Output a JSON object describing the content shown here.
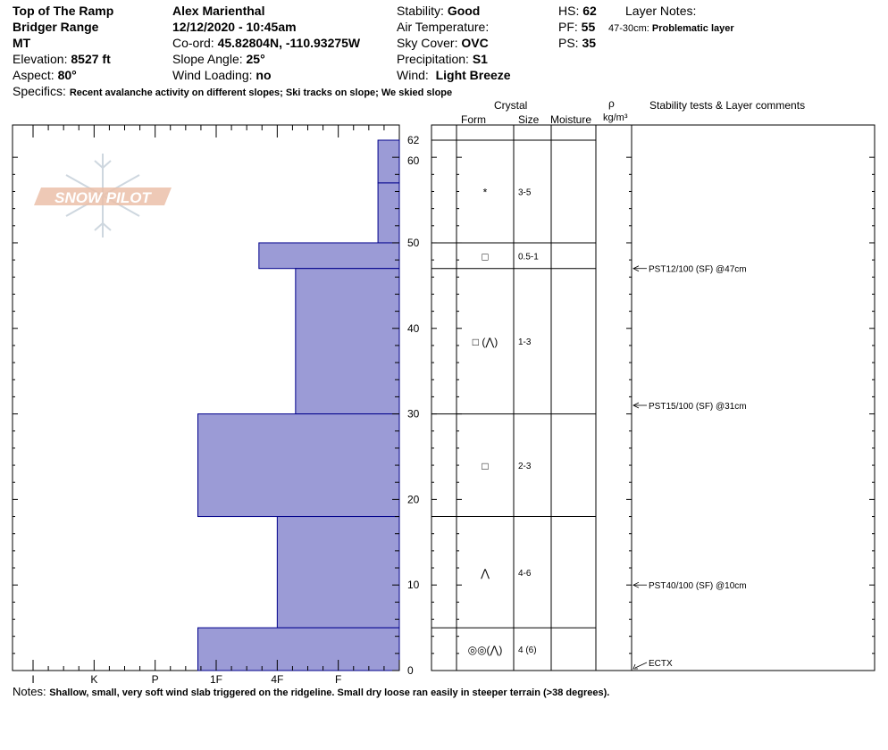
{
  "header": {
    "location": "Top of The Ramp",
    "range": "Bridger Range",
    "state": "MT",
    "elevation_label": "Elevation:",
    "elevation": "8527 ft",
    "aspect_label": "Aspect:",
    "aspect": "80°",
    "observer": "Alex Marienthal",
    "datetime": "12/12/2020 - 10:45am",
    "coord_label": "Co-ord:",
    "coord": "45.82804N, -110.93275W",
    "slope_label": "Slope Angle:",
    "slope": "25°",
    "wind_loading_label": "Wind Loading:",
    "wind_loading": "no",
    "stability_label": "Stability:",
    "stability": "Good",
    "air_temp_label": "Air Temperature:",
    "sky_label": "Sky Cover:",
    "sky": "OVC",
    "precip_label": "Precipitation:",
    "precip": "S1",
    "wind_label": "Wind:",
    "wind": "Light Breeze",
    "hs_label": "HS:",
    "hs": "62",
    "pf_label": "PF:",
    "pf": "55",
    "ps_label": "PS:",
    "ps": "35",
    "layer_notes_label": "Layer Notes:",
    "layer_note_range": "47-30cm:",
    "layer_note_text": "Problematic layer",
    "specifics_label": "Specifics:",
    "specifics": "Recent avalanche activity on different slopes; Ski tracks on slope; We skied slope"
  },
  "columns": {
    "crystal": "Crystal",
    "form": "Form",
    "size": "Size",
    "moisture": "Moisture",
    "rho": "ρ",
    "density_unit": "kg/m³",
    "stability_tests": "Stability tests & Layer comments"
  },
  "logo_text": "SNOW PILOT",
  "notes_label": "Notes:",
  "notes": "Shallow, small, very soft wind slab triggered on the ridgeline. Small dry loose ran easily in steeper terrain (>38 degrees).",
  "colors": {
    "hardness_fill": "#9b9bd6",
    "hardness_stroke": "#00008b",
    "logo": "#e9b9a0"
  },
  "chart_data": {
    "type": "bar",
    "orientation": "horizontal-profile",
    "y_axis": {
      "range": [
        0,
        62
      ],
      "ticks": [
        0,
        10,
        20,
        30,
        40,
        50,
        60,
        62
      ]
    },
    "x_axis": {
      "categories": [
        "I",
        "K",
        "P",
        "1F",
        "4F",
        "F"
      ]
    },
    "layers": [
      {
        "bottom": 57,
        "top": 62,
        "hardness": "F-",
        "form": "*",
        "size": "3-5"
      },
      {
        "bottom": 50,
        "top": 57,
        "hardness": "F-",
        "form": "*",
        "size": "3-5"
      },
      {
        "bottom": 47,
        "top": 50,
        "hardness": "4F-",
        "form": "□",
        "size": "0.5-1"
      },
      {
        "bottom": 30,
        "top": 47,
        "hardness": "F+",
        "form": "□ (⋀)",
        "size": "1-3"
      },
      {
        "bottom": 18,
        "top": 30,
        "hardness": "1F-",
        "form": "□",
        "size": "2-3"
      },
      {
        "bottom": 5,
        "top": 18,
        "hardness": "4F",
        "form": "⋀",
        "size": "4-6"
      },
      {
        "bottom": 0,
        "top": 5,
        "hardness": "1F-",
        "form": "◎◎(⋀)",
        "size": "4 (6)"
      }
    ],
    "hardness_scale": {
      "I": 6,
      "K": 5,
      "P": 4,
      "1F": 3,
      "4F": 2,
      "F": 1,
      "F-": 0.35,
      "F+": 1.7,
      "4F-": 2.3,
      "1F-": 3.3
    },
    "stability_tests": [
      {
        "depth": 47,
        "label": "PST12/100 (SF) @47cm"
      },
      {
        "depth": 31,
        "label": "PST15/100 (SF) @31cm"
      },
      {
        "depth": 10,
        "label": "PST40/100 (SF) @10cm"
      },
      {
        "depth": 0,
        "label": "ECTX"
      }
    ]
  }
}
